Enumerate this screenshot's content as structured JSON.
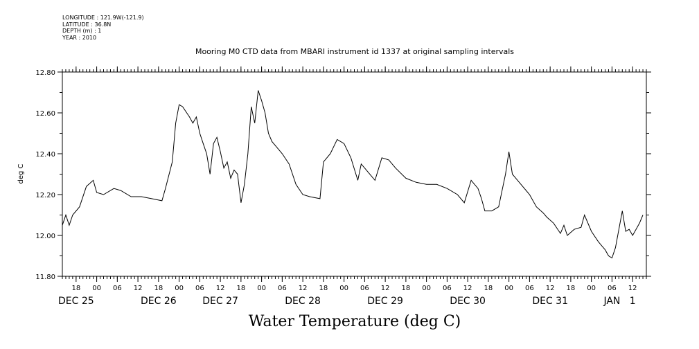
{
  "header": {
    "lines": [
      "LONGITUDE : 121.9W(-121.9)",
      "LATITUDE : 36.8N",
      "DEPTH (m) : 1",
      "YEAR : 2010"
    ]
  },
  "chart_data": {
    "type": "line",
    "title": "Mooring M0 CTD data from MBARI instrument id 1337 at original sampling intervals",
    "xlabel": "Water Temperature (deg C)",
    "ylabel": "deg C",
    "ylim": [
      11.8,
      12.8
    ],
    "yticks": [
      "11.80",
      "12.00",
      "12.20",
      "12.40",
      "12.60",
      "12.80"
    ],
    "xlim": [
      "2010-12-25 14:00",
      "2011-01-01 16:00"
    ],
    "hour_ticks": [
      {
        "t": "2010-12-25 18:00",
        "label": "18"
      },
      {
        "t": "2010-12-26 00:00",
        "label": "00"
      },
      {
        "t": "2010-12-26 06:00",
        "label": "06"
      },
      {
        "t": "2010-12-26 12:00",
        "label": "12"
      },
      {
        "t": "2010-12-26 18:00",
        "label": "18"
      },
      {
        "t": "2010-12-27 00:00",
        "label": "00"
      },
      {
        "t": "2010-12-27 06:00",
        "label": "06"
      },
      {
        "t": "2010-12-27 12:00",
        "label": "12"
      },
      {
        "t": "2010-12-27 18:00",
        "label": "18"
      },
      {
        "t": "2010-12-28 00:00",
        "label": "00"
      },
      {
        "t": "2010-12-28 06:00",
        "label": "06"
      },
      {
        "t": "2010-12-28 12:00",
        "label": "12"
      },
      {
        "t": "2010-12-28 18:00",
        "label": "18"
      },
      {
        "t": "2010-12-29 00:00",
        "label": "00"
      },
      {
        "t": "2010-12-29 06:00",
        "label": "06"
      },
      {
        "t": "2010-12-29 12:00",
        "label": "12"
      },
      {
        "t": "2010-12-29 18:00",
        "label": "18"
      },
      {
        "t": "2010-12-30 00:00",
        "label": "00"
      },
      {
        "t": "2010-12-30 06:00",
        "label": "06"
      },
      {
        "t": "2010-12-30 12:00",
        "label": "12"
      },
      {
        "t": "2010-12-30 18:00",
        "label": "18"
      },
      {
        "t": "2010-12-31 00:00",
        "label": "00"
      },
      {
        "t": "2010-12-31 06:00",
        "label": "06"
      },
      {
        "t": "2010-12-31 12:00",
        "label": "12"
      },
      {
        "t": "2010-12-31 18:00",
        "label": "18"
      },
      {
        "t": "2011-01-01 00:00",
        "label": "00"
      },
      {
        "t": "2011-01-01 06:00",
        "label": "06"
      },
      {
        "t": "2011-01-01 12:00",
        "label": "12"
      }
    ],
    "date_labels": [
      {
        "t": "2010-12-25 18:00",
        "label": "DEC 25"
      },
      {
        "t": "2010-12-26 18:00",
        "label": "DEC 26"
      },
      {
        "t": "2010-12-27 12:00",
        "label": "DEC 27"
      },
      {
        "t": "2010-12-28 12:00",
        "label": "DEC 28"
      },
      {
        "t": "2010-12-29 12:00",
        "label": "DEC 29"
      },
      {
        "t": "2010-12-30 12:00",
        "label": "DEC 30"
      },
      {
        "t": "2010-12-31 12:00",
        "label": "DEC 31"
      },
      {
        "t": "2011-01-01 06:00",
        "label": "JAN"
      },
      {
        "t": "2011-01-01 12:00",
        "label": "1"
      }
    ],
    "x": [
      "2010-12-25 14:00",
      "2010-12-25 15:00",
      "2010-12-25 16:00",
      "2010-12-25 17:00",
      "2010-12-25 19:00",
      "2010-12-25 21:00",
      "2010-12-25 23:00",
      "2010-12-26 00:00",
      "2010-12-26 02:00",
      "2010-12-26 05:00",
      "2010-12-26 07:00",
      "2010-12-26 10:00",
      "2010-12-26 13:00",
      "2010-12-26 16:00",
      "2010-12-26 19:00",
      "2010-12-26 20:00",
      "2010-12-26 22:00",
      "2010-12-26 23:00",
      "2010-12-27 00:00",
      "2010-12-27 01:00",
      "2010-12-27 03:00",
      "2010-12-27 04:00",
      "2010-12-27 05:00",
      "2010-12-27 06:00",
      "2010-12-27 07:00",
      "2010-12-27 08:00",
      "2010-12-27 09:00",
      "2010-12-27 10:00",
      "2010-12-27 11:00",
      "2010-12-27 12:00",
      "2010-12-27 13:00",
      "2010-12-27 14:00",
      "2010-12-27 15:00",
      "2010-12-27 16:00",
      "2010-12-27 17:00",
      "2010-12-27 18:00",
      "2010-12-27 19:00",
      "2010-12-27 20:00",
      "2010-12-27 21:00",
      "2010-12-27 22:00",
      "2010-12-27 23:00",
      "2010-12-28 00:00",
      "2010-12-28 01:00",
      "2010-12-28 02:00",
      "2010-12-28 03:00",
      "2010-12-28 05:00",
      "2010-12-28 06:00",
      "2010-12-28 08:00",
      "2010-12-28 10:00",
      "2010-12-28 12:00",
      "2010-12-28 14:00",
      "2010-12-28 17:00",
      "2010-12-28 18:00",
      "2010-12-28 20:00",
      "2010-12-28 22:00",
      "2010-12-29 00:00",
      "2010-12-29 02:00",
      "2010-12-29 04:00",
      "2010-12-29 05:00",
      "2010-12-29 06:00",
      "2010-12-29 07:00",
      "2010-12-29 09:00",
      "2010-12-29 11:00",
      "2010-12-29 13:00",
      "2010-12-29 15:00",
      "2010-12-29 18:00",
      "2010-12-29 21:00",
      "2010-12-30 00:00",
      "2010-12-30 03:00",
      "2010-12-30 06:00",
      "2010-12-30 09:00",
      "2010-12-30 11:00",
      "2010-12-30 13:00",
      "2010-12-30 15:00",
      "2010-12-30 16:00",
      "2010-12-30 17:00",
      "2010-12-30 19:00",
      "2010-12-30 21:00",
      "2010-12-30 23:00",
      "2010-12-31 00:00",
      "2010-12-31 01:00",
      "2010-12-31 03:00",
      "2010-12-31 06:00",
      "2010-12-31 08:00",
      "2010-12-31 10:00",
      "2010-12-31 11:00",
      "2010-12-31 13:00",
      "2010-12-31 15:00",
      "2010-12-31 16:00",
      "2010-12-31 17:00",
      "2010-12-31 19:00",
      "2010-12-31 21:00",
      "2010-12-31 22:00",
      "2011-01-01 00:00",
      "2011-01-01 02:00",
      "2011-01-01 03:00",
      "2011-01-01 04:00",
      "2011-01-01 05:00",
      "2011-01-01 06:00",
      "2011-01-01 07:00",
      "2011-01-01 09:00",
      "2011-01-01 10:00",
      "2011-01-01 11:00",
      "2011-01-01 12:00",
      "2011-01-01 13:00",
      "2011-01-01 14:00",
      "2011-01-01 15:00"
    ],
    "series": [
      {
        "values": [
          12.05,
          12.1,
          12.05,
          12.1,
          12.14,
          12.24,
          12.27,
          12.21,
          12.2,
          12.23,
          12.22,
          12.19,
          12.19,
          12.18,
          12.17,
          12.23,
          12.36,
          12.55,
          12.64,
          12.63,
          12.58,
          12.55,
          12.58,
          12.5,
          12.45,
          12.4,
          12.3,
          12.45,
          12.48,
          12.41,
          12.33,
          12.36,
          12.28,
          12.32,
          12.3,
          12.16,
          12.25,
          12.4,
          12.63,
          12.55,
          12.71,
          12.66,
          12.6,
          12.5,
          12.46,
          12.42,
          12.4,
          12.35,
          12.25,
          12.2,
          12.19,
          12.18,
          12.36,
          12.4,
          12.47,
          12.45,
          12.38,
          12.27,
          12.35,
          12.33,
          12.31,
          12.27,
          12.38,
          12.37,
          12.33,
          12.28,
          12.26,
          12.25,
          12.25,
          12.23,
          12.2,
          12.16,
          12.27,
          12.23,
          12.18,
          12.12,
          12.12,
          12.14,
          12.3,
          12.41,
          12.3,
          12.26,
          12.2,
          12.14,
          12.11,
          12.09,
          12.06,
          12.01,
          12.05,
          12.0,
          12.03,
          12.04,
          12.1,
          12.02,
          11.97,
          11.95,
          11.93,
          11.9,
          11.89,
          11.94,
          12.12,
          12.02,
          12.03,
          12.0,
          12.03,
          12.06,
          12.1
        ]
      }
    ],
    "grid": false,
    "colors": {
      "line": "#000000",
      "background": "#ffffff"
    }
  }
}
